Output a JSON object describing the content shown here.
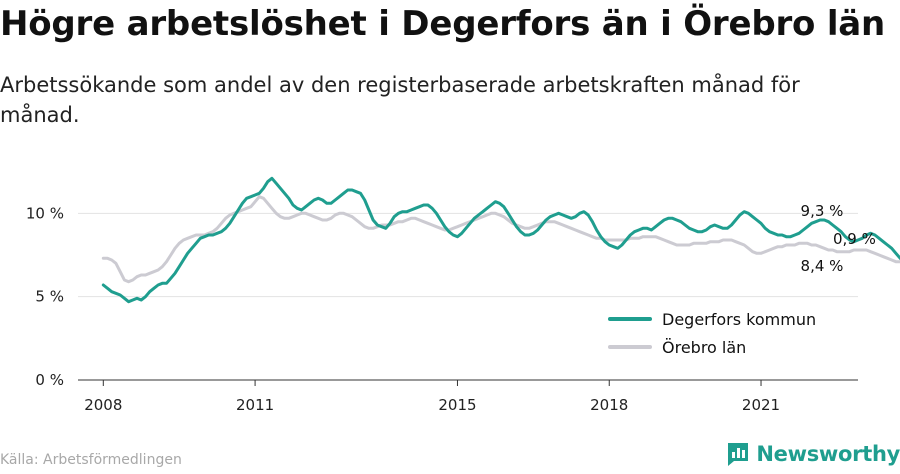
{
  "header": {
    "title": "Högre arbetslöshet i Degerfors än i Örebro län",
    "subtitle": "Arbetssökande som andel av den registerbaserade arbetskraften månad för månad."
  },
  "footer": {
    "source": "Källa: Arbetsförmedlingen",
    "brand": "Newsworthy",
    "brand_icon": "newsworthy-logo-icon"
  },
  "annotations": {
    "degerfors_last": "9,3 %",
    "orebro_last": "8,4 %",
    "difference": "0,9 %"
  },
  "chart_data": {
    "type": "line",
    "title": "Högre arbetslöshet i Degerfors än i Örebro län",
    "subtitle": "Arbetssökande som andel av den registerbaserade arbetskraften månad för månad.",
    "x_start": "2008-01",
    "x_ticks": [
      "2008",
      "2011",
      "2015",
      "2018",
      "2021"
    ],
    "y_ticks": [
      "0 %",
      "5 %",
      "10 %"
    ],
    "ylim": [
      0,
      12
    ],
    "xlim": [
      "2007-07",
      "2022-12"
    ],
    "grid": "horizontal",
    "legend_position": "bottom-right",
    "colors": {
      "degerfors": "#1f9e8f",
      "orebro": "#cccbd2"
    },
    "series": [
      {
        "name": "Degerfors kommun",
        "key": "degerfors",
        "values": [
          5.7,
          5.5,
          5.3,
          5.2,
          5.1,
          4.9,
          4.7,
          4.8,
          4.9,
          4.8,
          5.0,
          5.3,
          5.5,
          5.7,
          5.8,
          5.8,
          6.1,
          6.4,
          6.8,
          7.2,
          7.6,
          7.9,
          8.2,
          8.5,
          8.6,
          8.7,
          8.7,
          8.8,
          8.9,
          9.1,
          9.4,
          9.8,
          10.2,
          10.6,
          10.9,
          11.0,
          11.1,
          11.2,
          11.5,
          11.9,
          12.1,
          11.8,
          11.5,
          11.2,
          10.9,
          10.5,
          10.3,
          10.2,
          10.4,
          10.6,
          10.8,
          10.9,
          10.8,
          10.6,
          10.6,
          10.8,
          11.0,
          11.2,
          11.4,
          11.4,
          11.3,
          11.2,
          10.8,
          10.2,
          9.6,
          9.3,
          9.2,
          9.1,
          9.4,
          9.8,
          10.0,
          10.1,
          10.1,
          10.2,
          10.3,
          10.4,
          10.5,
          10.5,
          10.3,
          10.0,
          9.6,
          9.2,
          8.9,
          8.7,
          8.6,
          8.8,
          9.1,
          9.4,
          9.7,
          9.9,
          10.1,
          10.3,
          10.5,
          10.7,
          10.6,
          10.4,
          10.0,
          9.6,
          9.2,
          8.9,
          8.7,
          8.7,
          8.8,
          9.0,
          9.3,
          9.6,
          9.8,
          9.9,
          10.0,
          9.9,
          9.8,
          9.7,
          9.8,
          10.0,
          10.1,
          9.9,
          9.5,
          9.0,
          8.6,
          8.3,
          8.1,
          8.0,
          7.9,
          8.1,
          8.4,
          8.7,
          8.9,
          9.0,
          9.1,
          9.1,
          9.0,
          9.2,
          9.4,
          9.6,
          9.7,
          9.7,
          9.6,
          9.5,
          9.3,
          9.1,
          9.0,
          8.9,
          8.9,
          9.0,
          9.2,
          9.3,
          9.2,
          9.1,
          9.1,
          9.3,
          9.6,
          9.9,
          10.1,
          10.0,
          9.8,
          9.6,
          9.4,
          9.1,
          8.9,
          8.8,
          8.7,
          8.7,
          8.6,
          8.6,
          8.7,
          8.8,
          9.0,
          9.2,
          9.4,
          9.5,
          9.6,
          9.6,
          9.5,
          9.3,
          9.1,
          8.9,
          8.6,
          8.4,
          8.3,
          8.4,
          8.5,
          8.7,
          8.8,
          8.7,
          8.5,
          8.3,
          8.1,
          7.9,
          7.6,
          7.3,
          7.1,
          7.1,
          7.4,
          7.8,
          8.1,
          8.3,
          8.2,
          8.0,
          7.9,
          7.8,
          7.7,
          7.6,
          7.4,
          7.1,
          6.8,
          6.6,
          6.4,
          6.1,
          5.8,
          5.9,
          6.1,
          6.3,
          6.5,
          6.6,
          6.8,
          7.0,
          7.2,
          7.3,
          7.3,
          7.2,
          7.1,
          7.2,
          7.4,
          7.6,
          7.9,
          8.3,
          8.7,
          9.0,
          9.1,
          9.1,
          9.0,
          9.0,
          9.1,
          9.2,
          9.3,
          9.4,
          9.4,
          9.3,
          9.2,
          9.1,
          8.9,
          8.8,
          8.9,
          9.0,
          9.2,
          9.3
        ]
      },
      {
        "name": "Örebro län",
        "key": "orebro",
        "values": [
          7.3,
          7.3,
          7.2,
          7.0,
          6.5,
          6.0,
          5.9,
          6.0,
          6.2,
          6.3,
          6.3,
          6.4,
          6.5,
          6.6,
          6.8,
          7.1,
          7.5,
          7.9,
          8.2,
          8.4,
          8.5,
          8.6,
          8.7,
          8.7,
          8.7,
          8.8,
          8.9,
          9.1,
          9.4,
          9.7,
          9.9,
          10.0,
          10.1,
          10.2,
          10.3,
          10.4,
          10.7,
          11.0,
          10.9,
          10.6,
          10.3,
          10.0,
          9.8,
          9.7,
          9.7,
          9.8,
          9.9,
          10.0,
          10.0,
          9.9,
          9.8,
          9.7,
          9.6,
          9.6,
          9.7,
          9.9,
          10.0,
          10.0,
          9.9,
          9.8,
          9.6,
          9.4,
          9.2,
          9.1,
          9.1,
          9.2,
          9.3,
          9.3,
          9.3,
          9.4,
          9.5,
          9.5,
          9.6,
          9.7,
          9.7,
          9.6,
          9.5,
          9.4,
          9.3,
          9.2,
          9.1,
          9.0,
          9.0,
          9.1,
          9.2,
          9.3,
          9.4,
          9.5,
          9.6,
          9.7,
          9.8,
          9.9,
          10.0,
          10.0,
          9.9,
          9.8,
          9.6,
          9.4,
          9.3,
          9.2,
          9.1,
          9.1,
          9.2,
          9.3,
          9.4,
          9.5,
          9.5,
          9.5,
          9.4,
          9.3,
          9.2,
          9.1,
          9.0,
          8.9,
          8.8,
          8.7,
          8.6,
          8.5,
          8.5,
          8.4,
          8.4,
          8.4,
          8.4,
          8.4,
          8.4,
          8.5,
          8.5,
          8.5,
          8.6,
          8.6,
          8.6,
          8.6,
          8.5,
          8.4,
          8.3,
          8.2,
          8.1,
          8.1,
          8.1,
          8.1,
          8.2,
          8.2,
          8.2,
          8.2,
          8.3,
          8.3,
          8.3,
          8.4,
          8.4,
          8.4,
          8.3,
          8.2,
          8.1,
          7.9,
          7.7,
          7.6,
          7.6,
          7.7,
          7.8,
          7.9,
          8.0,
          8.0,
          8.1,
          8.1,
          8.1,
          8.2,
          8.2,
          8.2,
          8.1,
          8.1,
          8.0,
          7.9,
          7.8,
          7.8,
          7.7,
          7.7,
          7.7,
          7.7,
          7.8,
          7.8,
          7.8,
          7.8,
          7.7,
          7.6,
          7.5,
          7.4,
          7.3,
          7.2,
          7.1,
          7.1,
          7.1,
          7.1,
          7.2,
          7.2,
          7.2,
          7.2,
          7.2,
          7.2,
          7.1,
          7.0,
          6.9,
          6.9,
          6.9,
          7.0,
          7.1,
          7.2,
          7.3,
          7.4,
          7.5,
          7.5,
          7.6,
          7.7,
          7.8,
          7.9,
          8.0,
          8.1,
          8.2,
          8.4,
          8.6,
          8.9,
          9.2,
          9.5,
          9.7,
          9.6,
          9.4,
          9.2,
          9.1,
          9.2,
          9.2,
          9.1,
          9.0,
          8.9,
          8.8,
          8.7,
          8.6,
          8.6,
          8.5,
          8.5,
          8.4,
          8.4,
          8.4,
          8.4
        ]
      }
    ]
  }
}
